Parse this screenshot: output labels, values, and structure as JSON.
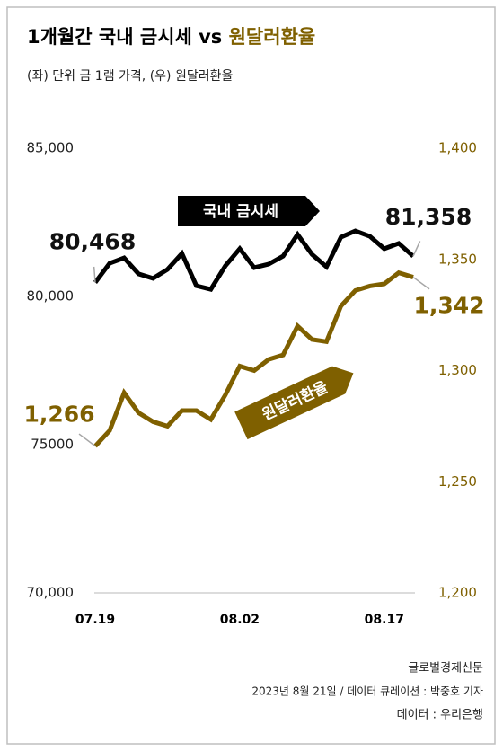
{
  "chart_data": {
    "type": "line",
    "title": {
      "text": "1개월간 국내 금시세 vs",
      "highlight": "원달러환율"
    },
    "subtitle": "(좌) 단위 금 1램 가격, (우) 원달러환율",
    "categories": [
      "07.19",
      null,
      null,
      null,
      null,
      null,
      null,
      null,
      null,
      null,
      "08.02",
      null,
      null,
      null,
      null,
      null,
      null,
      null,
      null,
      null,
      "08.17",
      null,
      null
    ],
    "series": [
      {
        "name": "국내 금시세",
        "color": "#000000",
        "axis": "y",
        "values": [
          80468,
          81120,
          81300,
          80760,
          80610,
          80910,
          81450,
          80360,
          80240,
          81030,
          81610,
          80970,
          81090,
          81360,
          82090,
          81420,
          81000,
          82000,
          82210,
          82030,
          81610,
          81790,
          81358
        ],
        "value_labels": [
          "80,468",
          null,
          null,
          null,
          null,
          null,
          null,
          null,
          null,
          null,
          null,
          null,
          null,
          null,
          null,
          null,
          null,
          null,
          null,
          null,
          null,
          null,
          "81,358"
        ]
      },
      {
        "name": "원달러환율",
        "color": "#7f6000",
        "axis": "y2",
        "values": [
          1266,
          1273,
          1290,
          1281,
          1277,
          1275,
          1282,
          1282,
          1278,
          1289,
          1302,
          1300,
          1305,
          1307,
          1320,
          1314,
          1313,
          1329,
          1336,
          1338,
          1339,
          1344,
          1342
        ],
        "value_labels": [
          "1,266",
          null,
          null,
          null,
          null,
          null,
          null,
          null,
          null,
          null,
          null,
          null,
          null,
          null,
          null,
          null,
          null,
          null,
          null,
          null,
          null,
          null,
          "1,342"
        ]
      }
    ],
    "ylim": [
      70000,
      85000
    ],
    "yticks": [
      {
        "value": 70000,
        "label": "70,000"
      },
      {
        "value": 75000,
        "label": "75000"
      },
      {
        "value": 80000,
        "label": "80,000"
      },
      {
        "value": 85000,
        "label": "85,000"
      }
    ],
    "y2lim": [
      1200,
      1400
    ],
    "y2ticks": [
      {
        "value": 1200,
        "label": "1,200"
      },
      {
        "value": 1250,
        "label": "1,250"
      },
      {
        "value": 1300,
        "label": "1,300"
      },
      {
        "value": 1350,
        "label": "1,350"
      },
      {
        "value": 1400,
        "label": "1,400"
      }
    ],
    "grid": false,
    "footer": [
      "글로벌경제신문",
      "2023년 8월 21일 / 데이터 큐레이션 : 박중호 기자",
      "데이터 : 우리은행"
    ]
  }
}
